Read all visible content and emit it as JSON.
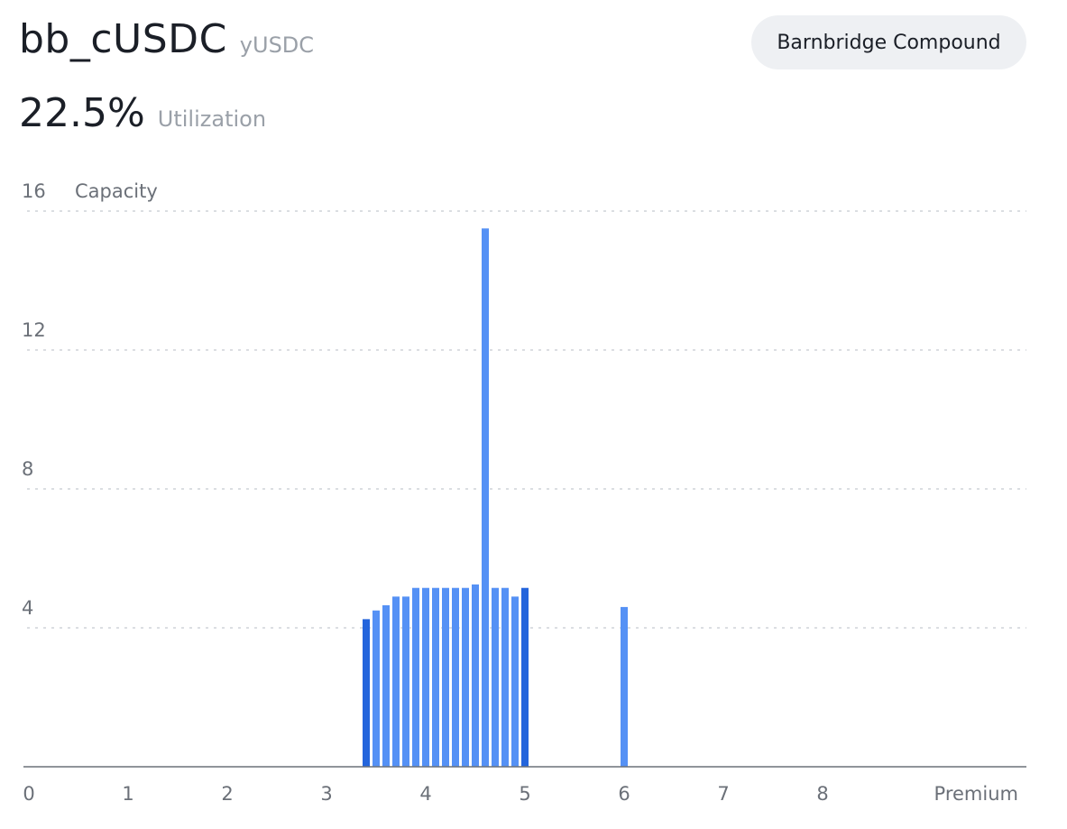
{
  "header": {
    "title": "bb_cUSDC",
    "subtitle": "yUSDC",
    "protocol_button": "Barnbridge Compound"
  },
  "metric": {
    "value": "22.5%",
    "label": "Utilization"
  },
  "colors": {
    "bar": "#5591f5",
    "bar_highlight": "#2465dc",
    "grid": "#cfd3d8",
    "axis": "#6b7078"
  },
  "chart_data": {
    "type": "bar",
    "ylabel": "Capacity",
    "xlabel": "Premium",
    "xlim": [
      0,
      9.3
    ],
    "ylim": [
      0,
      16
    ],
    "x_ticks": [
      0,
      1,
      2,
      3,
      4,
      5,
      6,
      7,
      8
    ],
    "y_ticks": [
      4,
      8,
      12,
      16
    ],
    "grid": true,
    "bars": [
      {
        "x": 3.4,
        "value": 4.25,
        "highlight": true
      },
      {
        "x": 3.5,
        "value": 4.5
      },
      {
        "x": 3.6,
        "value": 4.65
      },
      {
        "x": 3.7,
        "value": 4.9
      },
      {
        "x": 3.8,
        "value": 4.9
      },
      {
        "x": 3.9,
        "value": 5.15
      },
      {
        "x": 4.0,
        "value": 5.15
      },
      {
        "x": 4.1,
        "value": 5.15
      },
      {
        "x": 4.2,
        "value": 5.15
      },
      {
        "x": 4.3,
        "value": 5.15
      },
      {
        "x": 4.4,
        "value": 5.15
      },
      {
        "x": 4.5,
        "value": 5.25
      },
      {
        "x": 4.6,
        "value": 15.5
      },
      {
        "x": 4.7,
        "value": 5.15
      },
      {
        "x": 4.8,
        "value": 5.15
      },
      {
        "x": 4.9,
        "value": 4.9
      },
      {
        "x": 5.0,
        "value": 5.15,
        "highlight": true
      },
      {
        "x": 6.0,
        "value": 4.6
      }
    ]
  }
}
